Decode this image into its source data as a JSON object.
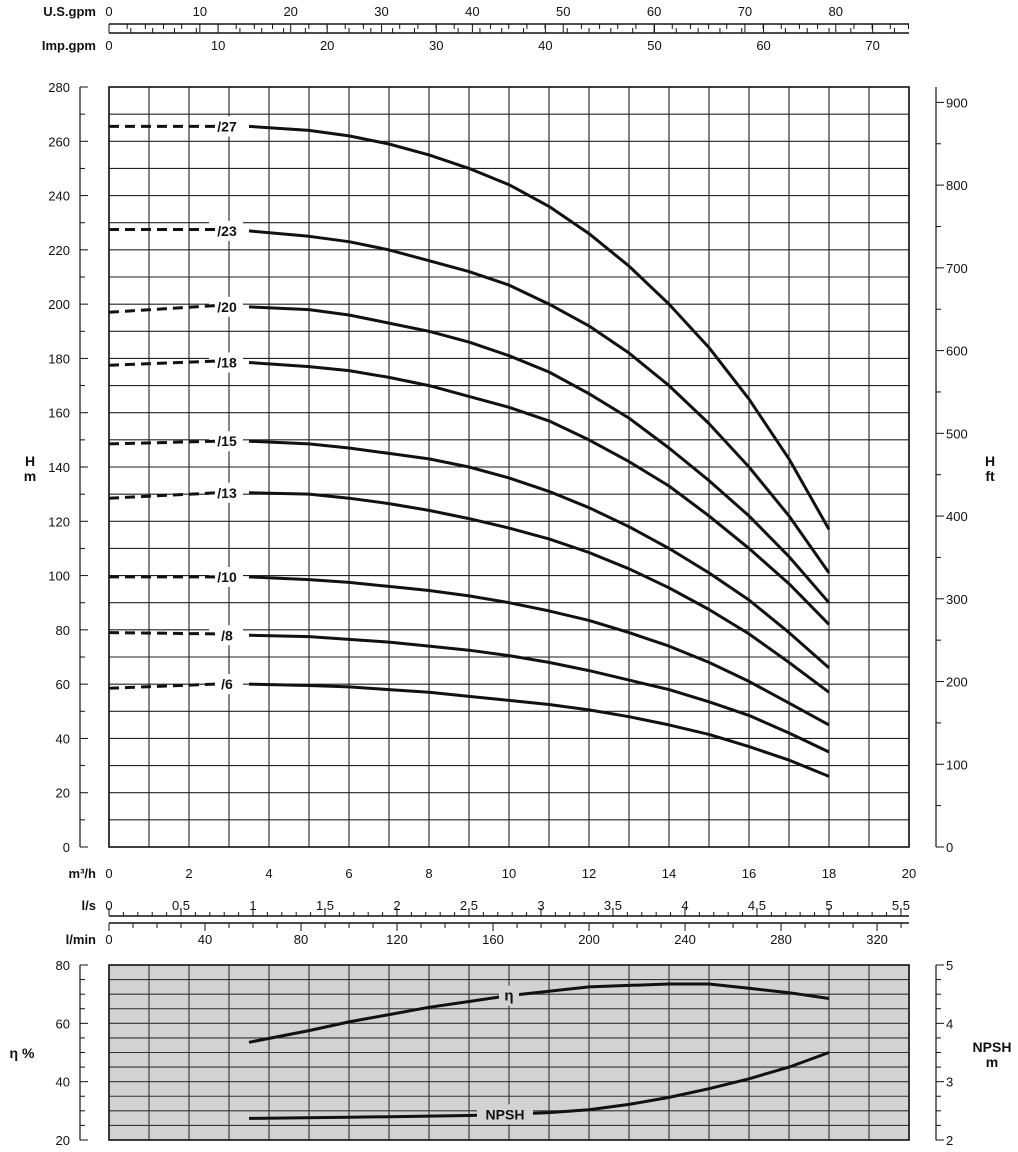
{
  "chart_data": [
    {
      "type": "line",
      "panel": "head-flow",
      "x_unit_label": "m³/h",
      "xlim": [
        0,
        20
      ],
      "x_ticks": [
        "0",
        "2",
        "4",
        "6",
        "8",
        "10",
        "12",
        "14",
        "16",
        "18",
        "20"
      ],
      "ylabel": "H\nm",
      "ylim": [
        0,
        280
      ],
      "y_ticks": [
        "0",
        "20",
        "40",
        "60",
        "80",
        "100",
        "120",
        "140",
        "160",
        "180",
        "200",
        "220",
        "240",
        "260",
        "280"
      ],
      "y2label": "H\nft",
      "y2lim": [
        0,
        918.6
      ],
      "y2_ticks": [
        "0",
        "100",
        "200",
        "300",
        "400",
        "500",
        "600",
        "700",
        "800",
        "900"
      ],
      "top_axes": [
        {
          "label": "U.S.gpm",
          "max": 88.06,
          "ticks": [
            "0",
            "10",
            "20",
            "30",
            "40",
            "50",
            "60",
            "70",
            "80"
          ],
          "tick_values": [
            0,
            10,
            20,
            30,
            40,
            50,
            60,
            70,
            80
          ]
        },
        {
          "label": "Imp.gpm",
          "max": 73.33,
          "ticks": [
            "0",
            "10",
            "20",
            "30",
            "40",
            "50",
            "60",
            "70"
          ],
          "tick_values": [
            0,
            10,
            20,
            30,
            40,
            50,
            60,
            70
          ]
        }
      ],
      "bottom_axes": [
        {
          "label": "l/s",
          "max": 5.556,
          "ticks": [
            "0",
            "0,5",
            "1",
            "1,5",
            "2",
            "2,5",
            "3",
            "3,5",
            "4",
            "4,5",
            "5",
            "5,5"
          ],
          "tick_values": [
            0,
            0.5,
            1,
            1.5,
            2,
            2.5,
            3,
            3.5,
            4,
            4.5,
            5,
            5.5
          ]
        },
        {
          "label": "l/min",
          "max": 333.3,
          "ticks": [
            "0",
            "40",
            "80",
            "120",
            "160",
            "200",
            "240",
            "280",
            "320"
          ],
          "tick_values": [
            0,
            40,
            80,
            120,
            160,
            200,
            240,
            280,
            320
          ]
        }
      ],
      "grid": true,
      "series": [
        {
          "name": "/27",
          "dashed": {
            "x": [
              0,
              2.7
            ],
            "y": [
              265.5,
              265.5
            ]
          },
          "x": [
            3.5,
            5,
            6,
            7,
            8,
            9,
            10,
            11,
            12,
            13,
            14,
            15,
            16,
            17,
            18
          ],
          "y": [
            265.5,
            264,
            262,
            259,
            255,
            250,
            244,
            236,
            226,
            214,
            200,
            184,
            165,
            143,
            117
          ]
        },
        {
          "name": "/23",
          "dashed": {
            "x": [
              0,
              2.7
            ],
            "y": [
              227.5,
              227.5
            ]
          },
          "x": [
            3.5,
            5,
            6,
            7,
            8,
            9,
            10,
            11,
            12,
            13,
            14,
            15,
            16,
            17,
            18
          ],
          "y": [
            227,
            225,
            223,
            220,
            216,
            212,
            207,
            200,
            192,
            182,
            170,
            156,
            140,
            122,
            101
          ]
        },
        {
          "name": "/20",
          "dashed": {
            "x": [
              0,
              2.7
            ],
            "y": [
              197,
              199.5
            ]
          },
          "x": [
            3.5,
            5,
            6,
            7,
            8,
            9,
            10,
            11,
            12,
            13,
            14,
            15,
            16,
            17,
            18
          ],
          "y": [
            199,
            198,
            196,
            193,
            190,
            186,
            181,
            175,
            167,
            158,
            147,
            135,
            122,
            107,
            90
          ]
        },
        {
          "name": "/18",
          "dashed": {
            "x": [
              0,
              2.7
            ],
            "y": [
              177.5,
              179
            ]
          },
          "x": [
            3.5,
            5,
            6,
            7,
            8,
            9,
            10,
            11,
            12,
            13,
            14,
            15,
            16,
            17,
            18
          ],
          "y": [
            178.5,
            177,
            175.5,
            173,
            170,
            166,
            162,
            157,
            150,
            142,
            133,
            122,
            110,
            97,
            82
          ]
        },
        {
          "name": "/15",
          "dashed": {
            "x": [
              0,
              2.7
            ],
            "y": [
              148.5,
              149.5
            ]
          },
          "x": [
            3.5,
            5,
            6,
            7,
            8,
            9,
            10,
            11,
            12,
            13,
            14,
            15,
            16,
            17,
            18
          ],
          "y": [
            149.5,
            148.5,
            147,
            145,
            143,
            140,
            136,
            131,
            125,
            118,
            110,
            101,
            91,
            79,
            66
          ]
        },
        {
          "name": "/13",
          "dashed": {
            "x": [
              0,
              2.7
            ],
            "y": [
              128.5,
              130.5
            ]
          },
          "x": [
            3.5,
            5,
            6,
            7,
            8,
            9,
            10,
            11,
            12,
            13,
            14,
            15,
            16,
            17,
            18
          ],
          "y": [
            130.5,
            130,
            128.5,
            126.5,
            124,
            121,
            117.5,
            113.5,
            108.5,
            102.5,
            95.5,
            87.5,
            78.5,
            68,
            57
          ]
        },
        {
          "name": "/10",
          "dashed": {
            "x": [
              0,
              2.7
            ],
            "y": [
              99.5,
              99.5
            ]
          },
          "x": [
            3.5,
            5,
            6,
            7,
            8,
            9,
            10,
            11,
            12,
            13,
            14,
            15,
            16,
            17,
            18
          ],
          "y": [
            99.5,
            98.5,
            97.5,
            96,
            94.5,
            92.5,
            90,
            87,
            83.5,
            79,
            74,
            68,
            61,
            53,
            45
          ]
        },
        {
          "name": "/8",
          "dashed": {
            "x": [
              0,
              2.7
            ],
            "y": [
              79,
              78.5
            ]
          },
          "x": [
            3.5,
            5,
            6,
            7,
            8,
            9,
            10,
            11,
            12,
            13,
            14,
            15,
            16,
            17,
            18
          ],
          "y": [
            78,
            77.5,
            76.5,
            75.5,
            74,
            72.5,
            70.5,
            68,
            65,
            61.5,
            58,
            53.5,
            48.5,
            42,
            35
          ]
        },
        {
          "name": "/6",
          "dashed": {
            "x": [
              0,
              2.7
            ],
            "y": [
              58.5,
              60
            ]
          },
          "x": [
            3.5,
            5,
            6,
            7,
            8,
            9,
            10,
            11,
            12,
            13,
            14,
            15,
            16,
            17,
            18
          ],
          "y": [
            60,
            59.5,
            59,
            58,
            57,
            55.5,
            54,
            52.5,
            50.5,
            48,
            45,
            41.5,
            37,
            32,
            26
          ]
        }
      ]
    },
    {
      "type": "line",
      "panel": "efficiency-npsh",
      "xlim": [
        0,
        20
      ],
      "ylabel": "η %",
      "ylim": [
        20,
        80
      ],
      "y_ticks": [
        "20",
        "40",
        "60",
        "80"
      ],
      "y2label": "NPSH\nm",
      "y2lim": [
        2,
        5
      ],
      "y2_ticks": [
        "2",
        "3",
        "4",
        "5"
      ],
      "grid": true,
      "background": "#d2d2d2",
      "series": [
        {
          "name": "η",
          "axis": "left",
          "x": [
            3.5,
            5,
            6,
            7,
            8,
            9,
            10,
            11,
            12,
            13,
            14,
            15,
            16,
            17,
            18
          ],
          "y": [
            53.5,
            57.5,
            60.5,
            63,
            65.5,
            67.5,
            69.5,
            71,
            72.5,
            73,
            73.5,
            73.5,
            72,
            70.5,
            68.5
          ]
        },
        {
          "name": "NPSH",
          "axis": "right",
          "x": [
            3.5,
            6,
            8,
            9,
            10,
            11,
            12,
            13,
            14,
            15,
            16,
            17,
            18
          ],
          "y": [
            2.37,
            2.39,
            2.41,
            2.42,
            2.44,
            2.47,
            2.52,
            2.61,
            2.73,
            2.88,
            3.05,
            3.25,
            3.5
          ]
        }
      ]
    }
  ]
}
